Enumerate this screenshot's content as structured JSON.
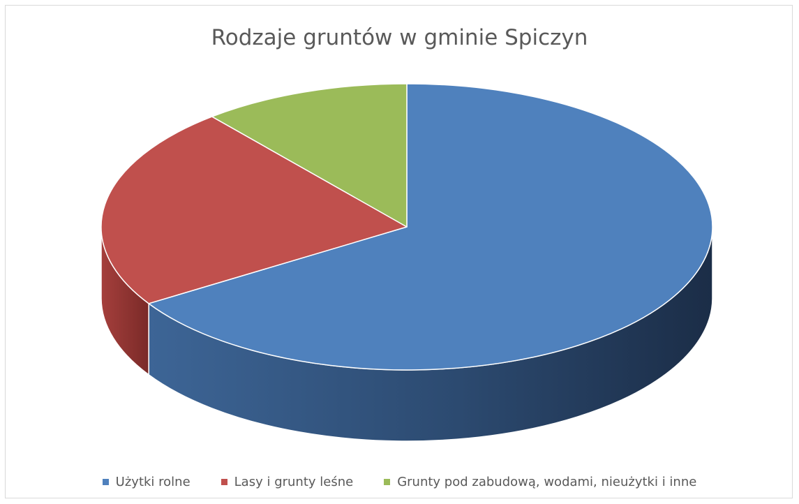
{
  "chart_data": {
    "type": "pie",
    "title": "Rodzaje gruntów w gminie Spiczyn",
    "style": "3d",
    "categories": [
      "Użytki rolne",
      "Lasy i grunty leśne",
      "Grunty pod zabudową, wodami, nieużytki i inne"
    ],
    "values": [
      66,
      23,
      11
    ],
    "colors": [
      "#4f81bd",
      "#c0504d",
      "#9bbb59"
    ],
    "legend": "bottom"
  }
}
